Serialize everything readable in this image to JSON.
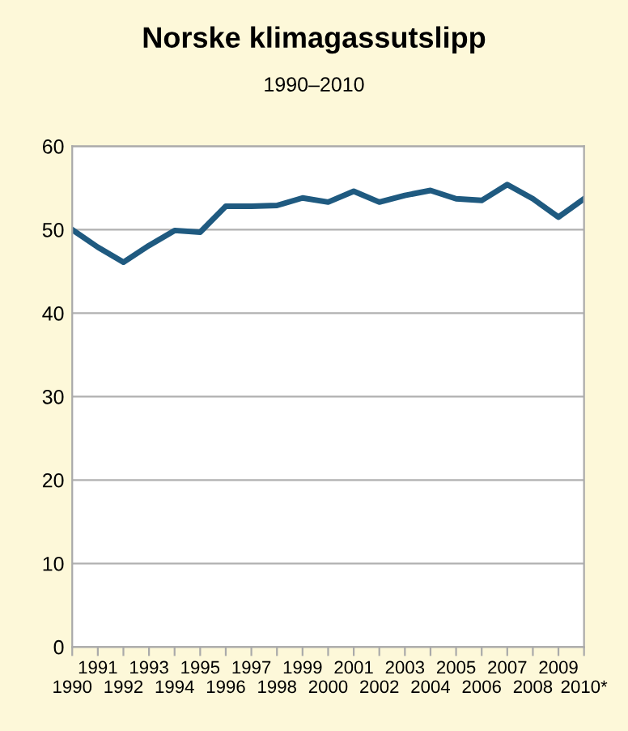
{
  "chart_data": {
    "type": "line",
    "title": "Norske klimagassutslipp",
    "subtitle": "1990–2010",
    "categories": [
      "1990",
      "1991",
      "1992",
      "1993",
      "1994",
      "1995",
      "1996",
      "1997",
      "1998",
      "1999",
      "2000",
      "2001",
      "2002",
      "2003",
      "2004",
      "2005",
      "2006",
      "2007",
      "2008",
      "2009",
      "2010*"
    ],
    "series": [
      {
        "color": "#1f5a80",
        "values": [
          50.0,
          47.9,
          46.1,
          48.1,
          49.9,
          49.7,
          52.8,
          52.8,
          52.9,
          53.8,
          53.3,
          54.6,
          53.3,
          54.1,
          54.7,
          53.7,
          53.5,
          55.4,
          53.7,
          51.5,
          53.7
        ]
      }
    ],
    "ylim": [
      0,
      60
    ],
    "yticks": [
      0,
      10,
      20,
      30,
      40,
      50,
      60
    ],
    "grid": "y",
    "legend": false,
    "marker": "none",
    "line_style": "solid"
  }
}
